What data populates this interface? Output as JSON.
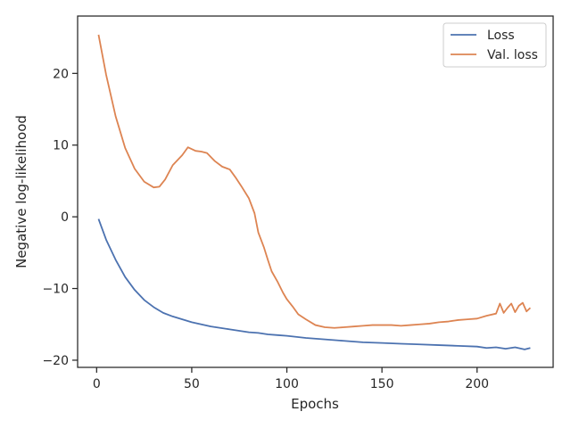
{
  "chart_data": {
    "type": "line",
    "title": "",
    "xlabel": "Epochs",
    "ylabel": "Negative log-likelihood",
    "xlim": [
      -10,
      240
    ],
    "ylim": [
      -21,
      28
    ],
    "xticks": [
      0,
      50,
      100,
      150,
      200
    ],
    "yticks": [
      -20,
      -10,
      0,
      10,
      20
    ],
    "xtick_labels": [
      "0",
      "50",
      "100",
      "150",
      "200"
    ],
    "ytick_labels": [
      "−20",
      "−10",
      "0",
      "10",
      "20"
    ],
    "grid": false,
    "legend_position": "top-right",
    "series": [
      {
        "name": "Loss",
        "color": "#4c72b0",
        "points": [
          [
            1,
            -0.3
          ],
          [
            5,
            -3.2
          ],
          [
            10,
            -6.0
          ],
          [
            15,
            -8.4
          ],
          [
            20,
            -10.2
          ],
          [
            25,
            -11.6
          ],
          [
            30,
            -12.6
          ],
          [
            35,
            -13.4
          ],
          [
            40,
            -13.9
          ],
          [
            45,
            -14.3
          ],
          [
            50,
            -14.7
          ],
          [
            55,
            -15.0
          ],
          [
            60,
            -15.3
          ],
          [
            65,
            -15.5
          ],
          [
            70,
            -15.7
          ],
          [
            75,
            -15.9
          ],
          [
            80,
            -16.1
          ],
          [
            85,
            -16.2
          ],
          [
            90,
            -16.4
          ],
          [
            95,
            -16.5
          ],
          [
            100,
            -16.6
          ],
          [
            110,
            -16.9
          ],
          [
            120,
            -17.1
          ],
          [
            130,
            -17.3
          ],
          [
            140,
            -17.5
          ],
          [
            150,
            -17.6
          ],
          [
            160,
            -17.7
          ],
          [
            170,
            -17.8
          ],
          [
            180,
            -17.9
          ],
          [
            190,
            -18.0
          ],
          [
            200,
            -18.1
          ],
          [
            205,
            -18.3
          ],
          [
            210,
            -18.2
          ],
          [
            215,
            -18.4
          ],
          [
            220,
            -18.2
          ],
          [
            225,
            -18.5
          ],
          [
            228,
            -18.3
          ]
        ]
      },
      {
        "name": "Val. loss",
        "color": "#dd8452",
        "points": [
          [
            1,
            25.4
          ],
          [
            5,
            19.8
          ],
          [
            10,
            14.0
          ],
          [
            15,
            9.6
          ],
          [
            20,
            6.7
          ],
          [
            25,
            4.9
          ],
          [
            30,
            4.1
          ],
          [
            33,
            4.2
          ],
          [
            36,
            5.2
          ],
          [
            40,
            7.2
          ],
          [
            45,
            8.6
          ],
          [
            48,
            9.7
          ],
          [
            52,
            9.2
          ],
          [
            55,
            9.1
          ],
          [
            58,
            8.9
          ],
          [
            62,
            7.8
          ],
          [
            66,
            7.0
          ],
          [
            70,
            6.6
          ],
          [
            73,
            5.5
          ],
          [
            76,
            4.3
          ],
          [
            80,
            2.6
          ],
          [
            83,
            0.5
          ],
          [
            85,
            -2.2
          ],
          [
            88,
            -4.3
          ],
          [
            90,
            -6.0
          ],
          [
            92,
            -7.6
          ],
          [
            95,
            -9.0
          ],
          [
            98,
            -10.6
          ],
          [
            100,
            -11.5
          ],
          [
            103,
            -12.5
          ],
          [
            106,
            -13.6
          ],
          [
            110,
            -14.3
          ],
          [
            115,
            -15.1
          ],
          [
            120,
            -15.4
          ],
          [
            125,
            -15.5
          ],
          [
            130,
            -15.4
          ],
          [
            135,
            -15.3
          ],
          [
            140,
            -15.2
          ],
          [
            145,
            -15.1
          ],
          [
            150,
            -15.1
          ],
          [
            155,
            -15.1
          ],
          [
            160,
            -15.2
          ],
          [
            165,
            -15.1
          ],
          [
            170,
            -15.0
          ],
          [
            175,
            -14.9
          ],
          [
            180,
            -14.7
          ],
          [
            185,
            -14.6
          ],
          [
            190,
            -14.4
          ],
          [
            195,
            -14.3
          ],
          [
            200,
            -14.2
          ],
          [
            205,
            -13.8
          ],
          [
            210,
            -13.5
          ],
          [
            212,
            -12.1
          ],
          [
            214,
            -13.4
          ],
          [
            216,
            -12.7
          ],
          [
            218,
            -12.1
          ],
          [
            220,
            -13.3
          ],
          [
            222,
            -12.4
          ],
          [
            224,
            -12.0
          ],
          [
            226,
            -13.2
          ],
          [
            228,
            -12.7
          ]
        ]
      }
    ]
  }
}
